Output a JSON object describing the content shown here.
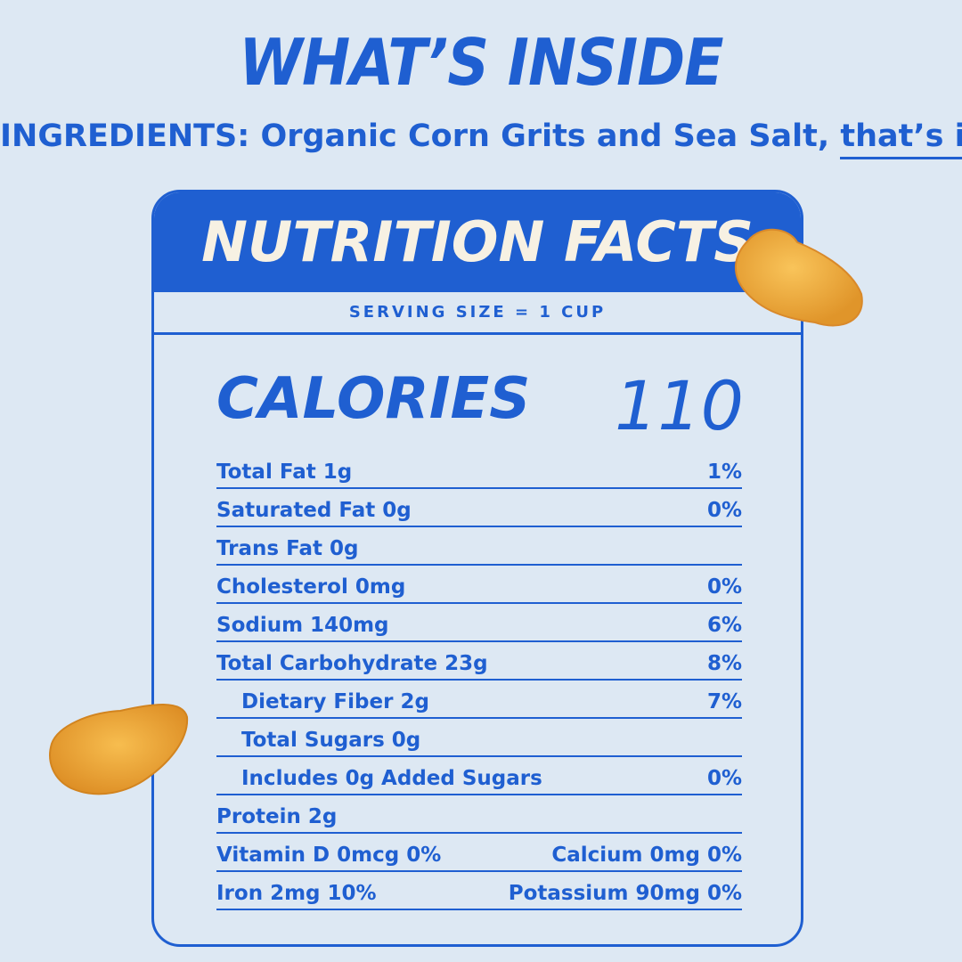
{
  "header": {
    "title": "WHAT’S INSIDE",
    "ingredients_label": "INGREDIENTS:",
    "ingredients": "Organic Corn Grits and Sea Salt,",
    "emphasis": "that’s it."
  },
  "panel": {
    "title": "NUTRITION FACTS",
    "serving": "SERVING SIZE = 1 CUP",
    "calories_label": "CALORIES",
    "calories": 110,
    "rows": [
      {
        "label": "Total Fat 1g",
        "dv": "1%"
      },
      {
        "label": "Saturated Fat 0g",
        "dv": "0%"
      },
      {
        "label": "Trans Fat 0g"
      },
      {
        "label": "Cholesterol 0mg",
        "dv": "0%"
      },
      {
        "label": "Sodium 140mg",
        "dv": "6%"
      },
      {
        "label": "Total Carbohydrate 23g",
        "dv": "8%",
        "sub": [
          {
            "label": "Dietary Fiber 2g",
            "dv": "7%"
          },
          {
            "label": "Total Sugars 0g"
          },
          {
            "label": "Includes 0g Added Sugars",
            "dv": "0%"
          }
        ]
      },
      {
        "label": "Protein 2g"
      }
    ],
    "minerals": [
      {
        "left": "Vitamin D 0mcg 0%",
        "right": "Calcium 0mg 0%"
      },
      {
        "left": "Iron 2mg 10%",
        "right": "Potassium 90mg 0%"
      }
    ]
  }
}
